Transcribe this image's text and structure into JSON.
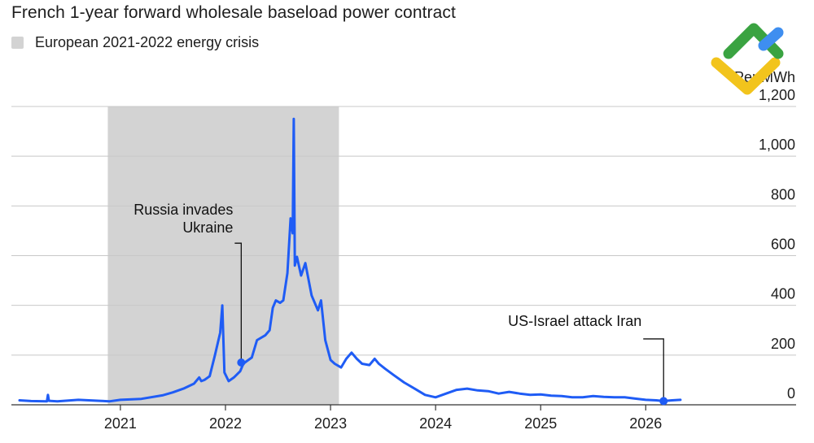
{
  "chart_data": {
    "type": "line",
    "title": "French 1-year forward wholesale baseload power contract",
    "unit_label": "Per MWh",
    "legend": [
      {
        "label": "European 2021-2022 energy crisis",
        "color": "#d3d3d3"
      }
    ],
    "shaded_region": {
      "from": 2020.88,
      "to": 2023.08,
      "label": "European 2021-2022 energy crisis"
    },
    "x_ticks": [
      {
        "value": 2021,
        "label": "2021"
      },
      {
        "value": 2022,
        "label": "2022"
      },
      {
        "value": 2023,
        "label": "2023"
      },
      {
        "value": 2024,
        "label": "2024"
      },
      {
        "value": 2025,
        "label": "2025"
      },
      {
        "value": 2026,
        "label": "2026"
      }
    ],
    "y_ticks": [
      {
        "value": 0,
        "label": "0"
      },
      {
        "value": 200,
        "label": "200"
      },
      {
        "value": 400,
        "label": "400"
      },
      {
        "value": 600,
        "label": "600"
      },
      {
        "value": 800,
        "label": "800"
      },
      {
        "value": 1000,
        "label": "1,000"
      },
      {
        "value": 1200,
        "label": "1,200"
      }
    ],
    "xlim": [
      2020.04,
      2026.85
    ],
    "ylim": [
      0,
      1200
    ],
    "y_axis_position": "right",
    "grid": true,
    "series": [
      {
        "color": "#1f5cf5",
        "x": [
          2020.04,
          2020.15,
          2020.3,
          2020.31,
          2020.32,
          2020.4,
          2020.6,
          2020.8,
          2020.9,
          2021.0,
          2021.2,
          2021.4,
          2021.5,
          2021.6,
          2021.7,
          2021.75,
          2021.77,
          2021.8,
          2021.85,
          2021.9,
          2021.95,
          2021.97,
          2021.99,
          2022.03,
          2022.08,
          2022.14,
          2022.17,
          2022.2,
          2022.25,
          2022.3,
          2022.38,
          2022.42,
          2022.45,
          2022.48,
          2022.52,
          2022.55,
          2022.59,
          2022.62,
          2022.64,
          2022.65,
          2022.66,
          2022.68,
          2022.72,
          2022.76,
          2022.82,
          2022.88,
          2022.91,
          2022.95,
          2023.0,
          2023.04,
          2023.1,
          2023.15,
          2023.2,
          2023.25,
          2023.3,
          2023.37,
          2023.42,
          2023.46,
          2023.52,
          2023.6,
          2023.7,
          2023.8,
          2023.9,
          2024.0,
          2024.1,
          2024.2,
          2024.3,
          2024.4,
          2024.5,
          2024.6,
          2024.7,
          2024.8,
          2024.9,
          2025.0,
          2025.1,
          2025.2,
          2025.3,
          2025.4,
          2025.5,
          2025.6,
          2025.7,
          2025.8,
          2025.9,
          2026.0,
          2026.1,
          2026.17,
          2026.25,
          2026.33
        ],
        "y": [
          18,
          15,
          14,
          40,
          16,
          14,
          20,
          16,
          14,
          20,
          24,
          38,
          50,
          65,
          85,
          110,
          95,
          100,
          115,
          200,
          290,
          400,
          130,
          95,
          110,
          135,
          165,
          175,
          190,
          260,
          280,
          300,
          390,
          420,
          410,
          420,
          530,
          750,
          690,
          1150,
          560,
          595,
          520,
          570,
          440,
          380,
          420,
          260,
          180,
          165,
          150,
          185,
          210,
          185,
          165,
          160,
          185,
          165,
          145,
          120,
          90,
          65,
          40,
          30,
          45,
          60,
          65,
          58,
          55,
          45,
          52,
          45,
          40,
          42,
          37,
          35,
          30,
          30,
          35,
          32,
          30,
          30,
          25,
          20,
          18,
          15,
          18,
          20
        ]
      }
    ],
    "annotations": [
      {
        "lines": [
          "Russia invades",
          "Ukraine"
        ],
        "x": 2022.15,
        "y": 170
      },
      {
        "lines": [
          "US-Israel attack Iran"
        ],
        "x": 2026.17,
        "y": 15
      }
    ]
  }
}
